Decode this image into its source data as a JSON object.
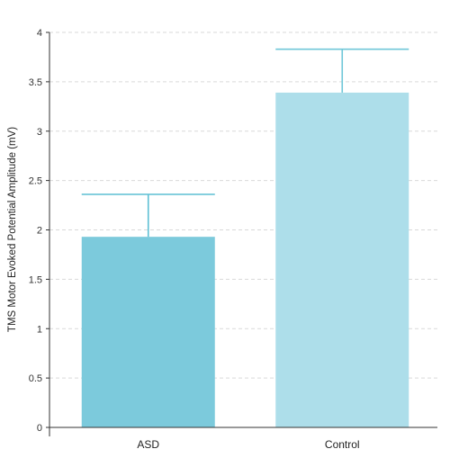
{
  "chart_data": {
    "type": "bar",
    "title": "",
    "xlabel": "",
    "ylabel": "TMS Motor Evoked Potential Amplitude (mV)",
    "categories": [
      "ASD",
      "Control"
    ],
    "values": [
      1.93,
      3.39
    ],
    "error_upper": [
      2.36,
      3.83
    ],
    "ylim": [
      0,
      4
    ],
    "yticks": [
      "0",
      "0.5",
      "1",
      "1.5",
      "2",
      "2.5",
      "3",
      "3.5",
      "4"
    ],
    "grid": "horizontal dashed",
    "legend": "none",
    "colors": {
      "bars": [
        "#7ccadc",
        "#addeea"
      ],
      "error_bars": [
        "#5dbfd4",
        "#6fc7d8"
      ],
      "axis": "#333333",
      "grid": "#d9d9d9"
    }
  }
}
